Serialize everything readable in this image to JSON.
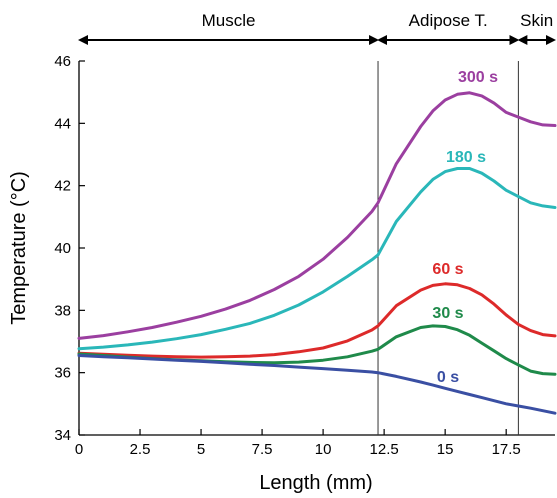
{
  "chart_data": {
    "type": "line",
    "xlabel": "Length (mm)",
    "ylabel": "Temperature (°C)",
    "xlim": [
      0,
      19.5
    ],
    "ylim": [
      34,
      46
    ],
    "xticks": [
      0,
      2.5,
      5,
      7.5,
      10,
      12.5,
      15,
      17.5
    ],
    "xtick_labels": [
      "0",
      "2.5",
      "5",
      "7.5",
      "10",
      "12.5",
      "15",
      "17.5"
    ],
    "yticks": [
      34,
      36,
      38,
      40,
      42,
      44,
      46
    ],
    "ytick_labels": [
      "34",
      "36",
      "38",
      "40",
      "42",
      "44",
      "46"
    ],
    "grid": false,
    "legend": "inline labels",
    "boundaries": [
      12.25,
      18.0
    ],
    "regions": [
      {
        "label": "Muscle",
        "from": 0,
        "to": 12.25
      },
      {
        "label": "Adipose T.",
        "from": 12.25,
        "to": 18.0
      },
      {
        "label": "Skin",
        "from": 18.0,
        "to": 19.5
      }
    ],
    "x": [
      0,
      1,
      2,
      3,
      4,
      5,
      6,
      7,
      8,
      9,
      10,
      11,
      12,
      12.25,
      13,
      14,
      14.5,
      15,
      15.5,
      16,
      16.5,
      17,
      17.5,
      18,
      18.5,
      19,
      19.5
    ],
    "series": [
      {
        "name": "300 s",
        "color": "#9b3fa0",
        "values": [
          37.1,
          37.19,
          37.31,
          37.45,
          37.62,
          37.81,
          38.04,
          38.32,
          38.67,
          39.09,
          39.64,
          40.34,
          41.17,
          41.45,
          42.7,
          43.9,
          44.4,
          44.75,
          44.93,
          44.98,
          44.88,
          44.65,
          44.35,
          44.2,
          44.05,
          43.95,
          43.93
        ]
      },
      {
        "name": "180 s",
        "color": "#2ab7b9",
        "values": [
          36.77,
          36.82,
          36.89,
          36.98,
          37.09,
          37.22,
          37.39,
          37.58,
          37.84,
          38.17,
          38.59,
          39.09,
          39.62,
          39.78,
          40.85,
          41.8,
          42.2,
          42.45,
          42.55,
          42.55,
          42.4,
          42.15,
          41.85,
          41.65,
          41.45,
          41.35,
          41.3
        ]
      },
      {
        "name": "60 s",
        "color": "#dd2a2a",
        "values": [
          36.62,
          36.59,
          36.56,
          36.53,
          36.51,
          36.5,
          36.51,
          36.53,
          36.58,
          36.67,
          36.79,
          37.02,
          37.37,
          37.5,
          38.15,
          38.65,
          38.8,
          38.85,
          38.82,
          38.7,
          38.5,
          38.2,
          37.85,
          37.55,
          37.35,
          37.22,
          37.18
        ]
      },
      {
        "name": "30 s",
        "color": "#1f8a4a",
        "values": [
          36.6,
          36.55,
          36.5,
          36.45,
          36.41,
          36.38,
          36.35,
          36.33,
          36.32,
          36.34,
          36.4,
          36.51,
          36.69,
          36.75,
          37.15,
          37.45,
          37.5,
          37.48,
          37.38,
          37.2,
          36.95,
          36.7,
          36.45,
          36.25,
          36.05,
          35.97,
          35.95
        ]
      },
      {
        "name": "0 s",
        "color": "#3a4fa3",
        "values": [
          36.55,
          36.51,
          36.48,
          36.44,
          36.4,
          36.36,
          36.32,
          36.27,
          36.23,
          36.18,
          36.13,
          36.08,
          36.02,
          36.0,
          35.88,
          35.7,
          35.6,
          35.5,
          35.4,
          35.3,
          35.2,
          35.1,
          35.0,
          34.93,
          34.86,
          34.78,
          34.7
        ]
      }
    ]
  }
}
